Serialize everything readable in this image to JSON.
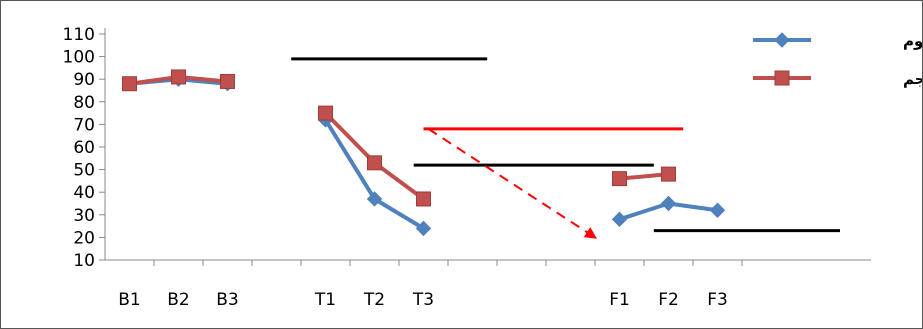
{
  "chart_data": {
    "type": "line",
    "categories": [
      "B1",
      "B2",
      "B3",
      "",
      "T1",
      "T2",
      "T3",
      "",
      "",
      "",
      "F1",
      "F2",
      "F3"
    ],
    "ylim": [
      10,
      110
    ],
    "yticks": [
      10,
      20,
      30,
      40,
      50,
      60,
      70,
      80,
      90,
      100,
      110
    ],
    "grid": false,
    "legend_position": "top-right",
    "series": [
      {
        "name": "زوج دوم",
        "color": "#4f81bd",
        "marker": "diamond",
        "values": [
          88,
          90,
          88,
          null,
          72,
          37,
          24,
          null,
          null,
          null,
          28,
          35,
          32
        ]
      },
      {
        "name": "زوج پنجم",
        "color": "#c0504d",
        "marker": "square",
        "values": [
          88,
          91,
          89,
          null,
          75,
          53,
          37,
          null,
          null,
          null,
          46,
          48,
          null
        ]
      }
    ],
    "reference_lines": [
      {
        "color": "#000000",
        "y": 99,
        "x_from": 3.8,
        "x_to": 7.8
      },
      {
        "color": "#ff0000",
        "y": 68,
        "x_from": 6.5,
        "x_to": 11.8
      },
      {
        "color": "#000000",
        "y": 52,
        "x_from": 6.3,
        "x_to": 11.2
      },
      {
        "color": "#000000",
        "y": 23,
        "x_from": 11.2,
        "x_to": 15.0
      }
    ],
    "trend_arrow": {
      "color": "#ff0000",
      "style": "dashed",
      "from": [
        6.6,
        68
      ],
      "to": [
        10.0,
        20
      ]
    }
  }
}
